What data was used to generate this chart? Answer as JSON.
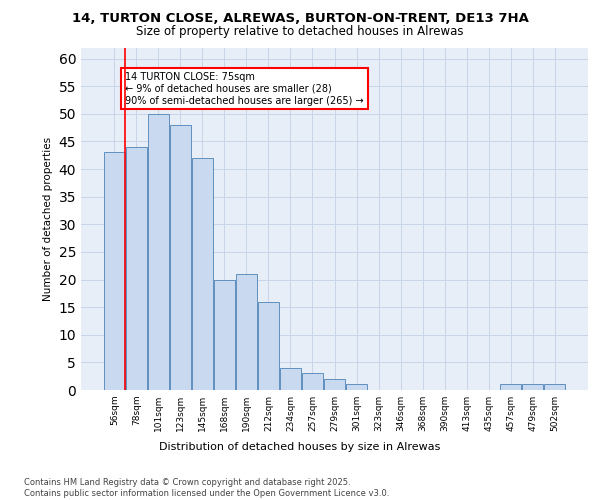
{
  "title1": "14, TURTON CLOSE, ALREWAS, BURTON-ON-TRENT, DE13 7HA",
  "title2": "Size of property relative to detached houses in Alrewas",
  "xlabel": "Distribution of detached houses by size in Alrewas",
  "ylabel": "Number of detached properties",
  "categories": [
    "56sqm",
    "78sqm",
    "101sqm",
    "123sqm",
    "145sqm",
    "168sqm",
    "190sqm",
    "212sqm",
    "234sqm",
    "257sqm",
    "279sqm",
    "301sqm",
    "323sqm",
    "346sqm",
    "368sqm",
    "390sqm",
    "413sqm",
    "435sqm",
    "457sqm",
    "479sqm",
    "502sqm"
  ],
  "values": [
    43,
    44,
    50,
    48,
    42,
    20,
    21,
    16,
    4,
    3,
    2,
    1,
    0,
    0,
    0,
    0,
    0,
    0,
    1,
    1,
    1
  ],
  "bar_color": "#c9d9f0",
  "bar_edge_color": "#6090c0",
  "grid_color": "#c8d4e8",
  "background_color": "#e8eef8",
  "vline_color": "red",
  "annotation_text": "14 TURTON CLOSE: 75sqm\n← 9% of detached houses are smaller (28)\n90% of semi-detached houses are larger (265) →",
  "footer_text": "Contains HM Land Registry data © Crown copyright and database right 2025.\nContains public sector information licensed under the Open Government Licence v3.0.",
  "ylim": [
    0,
    62
  ],
  "yticks": [
    0,
    5,
    10,
    15,
    20,
    25,
    30,
    35,
    40,
    45,
    50,
    55,
    60
  ]
}
